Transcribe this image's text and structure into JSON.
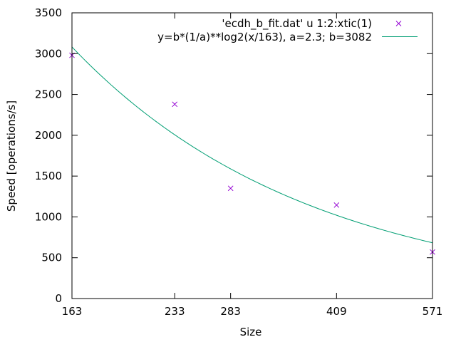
{
  "chart_data": {
    "type": "scatter",
    "xlabel": "Size",
    "ylabel": "Speed [operations/s]",
    "x_scale": "log",
    "xlim": [
      163,
      571
    ],
    "ylim": [
      0,
      3500
    ],
    "x_ticks": [
      163,
      233,
      283,
      409,
      571
    ],
    "y_ticks": [
      0,
      500,
      1000,
      1500,
      2000,
      2500,
      3000,
      3500
    ],
    "legend_position": "top-right",
    "grid": false,
    "series": [
      {
        "name": "'ecdh_b_fit.dat' u 1:2:xtic(1)",
        "kind": "points",
        "marker": "x",
        "color": "#9400d3",
        "x": [
          163,
          233,
          283,
          409,
          571
        ],
        "y": [
          2980,
          2380,
          1350,
          1145,
          570
        ]
      },
      {
        "name": "y=b*(1/a)**log2(x/163), a=2.3; b=3082",
        "kind": "fit-line",
        "color": "#009e73",
        "formula": {
          "a": 2.3,
          "b": 3082,
          "x0": 163
        }
      }
    ]
  }
}
